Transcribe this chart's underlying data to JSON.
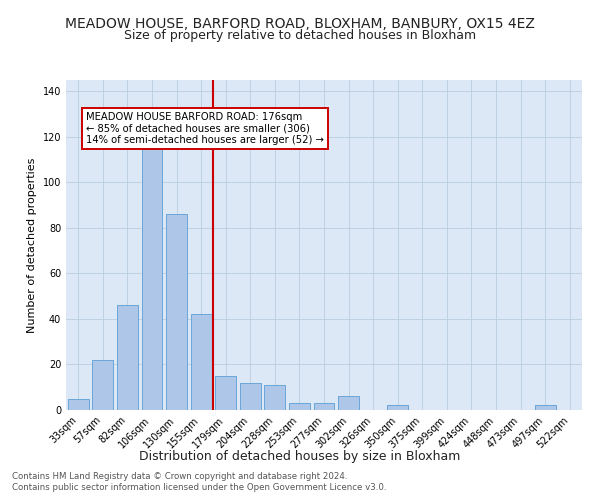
{
  "title": "MEADOW HOUSE, BARFORD ROAD, BLOXHAM, BANBURY, OX15 4EZ",
  "subtitle": "Size of property relative to detached houses in Bloxham",
  "xlabel": "Distribution of detached houses by size in Bloxham",
  "ylabel": "Number of detached properties",
  "footnote1": "Contains HM Land Registry data © Crown copyright and database right 2024.",
  "footnote2": "Contains public sector information licensed under the Open Government Licence v3.0.",
  "categories": [
    "33sqm",
    "57sqm",
    "82sqm",
    "106sqm",
    "130sqm",
    "155sqm",
    "179sqm",
    "204sqm",
    "228sqm",
    "253sqm",
    "277sqm",
    "302sqm",
    "326sqm",
    "350sqm",
    "375sqm",
    "399sqm",
    "424sqm",
    "448sqm",
    "473sqm",
    "497sqm",
    "522sqm"
  ],
  "values": [
    5,
    22,
    46,
    115,
    86,
    42,
    15,
    12,
    11,
    3,
    3,
    6,
    0,
    2,
    0,
    0,
    0,
    0,
    0,
    2,
    0
  ],
  "bar_color": "#aec6e8",
  "bar_edge_color": "#5a9fd4",
  "vline_x": 6,
  "vline_color": "#cc0000",
  "annotation_text": "MEADOW HOUSE BARFORD ROAD: 176sqm\n← 85% of detached houses are smaller (306)\n14% of semi-detached houses are larger (52) →",
  "annotation_box_color": "#ffffff",
  "annotation_box_edge": "#cc0000",
  "ylim": [
    0,
    145
  ],
  "yticks": [
    0,
    20,
    40,
    60,
    80,
    100,
    120,
    140
  ],
  "bg_color": "#dce8f5",
  "title_fontsize": 10,
  "subtitle_fontsize": 9,
  "tick_fontsize": 7,
  "ylabel_fontsize": 8,
  "xlabel_fontsize": 9
}
